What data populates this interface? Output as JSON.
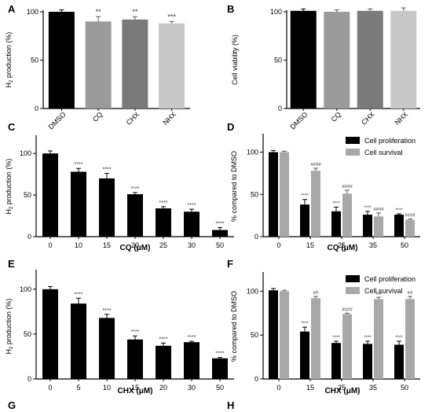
{
  "figure": {
    "panel_letters": [
      "A",
      "B",
      "C",
      "D",
      "E",
      "F",
      "G",
      "H"
    ]
  },
  "chart_data": [
    {
      "panel": "A",
      "type": "bar",
      "ylabel": "H2S production (%)",
      "ylim": [
        0,
        100
      ],
      "yticks": [
        "0",
        "50",
        "100"
      ],
      "categories": [
        "DMSO",
        "CQ",
        "CHX",
        "NHX"
      ],
      "series": [
        {
          "values": [
            100,
            90,
            92,
            88
          ],
          "errors": [
            2,
            5,
            3,
            2
          ],
          "colors": [
            "#000000",
            "#9b9b9b",
            "#7a7a7a",
            "#c8c8c8"
          ],
          "annotations": [
            "",
            "**",
            "**",
            "***"
          ]
        }
      ],
      "grid": false
    },
    {
      "panel": "B",
      "type": "bar",
      "ylabel": "Cell viability (%)",
      "ylim": [
        0,
        100
      ],
      "yticks": [
        "0",
        "50",
        "100"
      ],
      "categories": [
        "DMSO",
        "CQ",
        "CHX",
        "NHX"
      ],
      "series": [
        {
          "values": [
            101,
            100,
            101,
            101
          ],
          "errors": [
            2,
            2,
            2,
            3
          ],
          "colors": [
            "#000000",
            "#9b9b9b",
            "#7a7a7a",
            "#c8c8c8"
          ],
          "annotations": [
            "",
            "",
            "",
            ""
          ]
        }
      ],
      "grid": false
    },
    {
      "panel": "C",
      "type": "bar",
      "ylabel": "H2S production (%)",
      "xlabel": "CQ (μM)",
      "ylim": [
        0,
        120
      ],
      "yticks": [
        "0",
        "50",
        "100"
      ],
      "categories": [
        "0",
        "10",
        "15",
        "20",
        "25",
        "30",
        "50"
      ],
      "series": [
        {
          "values": [
            100,
            78,
            70,
            51,
            34,
            30,
            8
          ],
          "errors": [
            3,
            4,
            6,
            2,
            2,
            3,
            3
          ],
          "colors": [
            "#000000"
          ],
          "annotations": [
            "",
            "****",
            "****",
            "****",
            "****",
            "****",
            "****"
          ]
        }
      ],
      "grid": false
    },
    {
      "panel": "D",
      "type": "bar",
      "ylabel": "% compared to DMSO",
      "xlabel": "CQ (μM)",
      "ylim": [
        0,
        120
      ],
      "yticks": [
        "0",
        "50",
        "100"
      ],
      "categories": [
        "0",
        "15",
        "25",
        "35",
        "50"
      ],
      "series": [
        {
          "name": "Cell proliferation",
          "values": [
            100,
            38,
            30,
            26,
            26
          ],
          "errors": [
            2,
            6,
            5,
            4,
            1
          ],
          "colors": [
            "#000000"
          ],
          "annotations": [
            "",
            "****",
            "****",
            "****",
            "****"
          ]
        },
        {
          "name": "Cell survival",
          "values": [
            100,
            78,
            51,
            24,
            20
          ],
          "errors": [
            1,
            3,
            4,
            4,
            1
          ],
          "colors": [
            "#a8a8a8"
          ],
          "annotations": [
            "",
            "####",
            "####",
            "####",
            "####"
          ]
        }
      ],
      "legend": "top-right",
      "grid": false
    },
    {
      "panel": "E",
      "type": "bar",
      "ylabel": "H2S production (%)",
      "xlabel": "CHX (μM)",
      "ylim": [
        0,
        120
      ],
      "yticks": [
        "0",
        "50",
        "100"
      ],
      "categories": [
        "0",
        "5",
        "10",
        "15",
        "20",
        "30",
        "50"
      ],
      "series": [
        {
          "values": [
            100,
            84,
            68,
            44,
            37,
            41,
            23
          ],
          "errors": [
            3,
            6,
            4,
            4,
            3,
            1,
            1
          ],
          "colors": [
            "#000000"
          ],
          "annotations": [
            "",
            "****",
            "****",
            "****",
            "****",
            "****",
            "****"
          ]
        }
      ],
      "grid": false
    },
    {
      "panel": "F",
      "type": "bar",
      "ylabel": "% compared to DMSO",
      "xlabel": "CHX (μM)",
      "ylim": [
        0,
        120
      ],
      "yticks": [
        "0",
        "50",
        "100"
      ],
      "categories": [
        "0",
        "15",
        "25",
        "35",
        "50"
      ],
      "series": [
        {
          "name": "Cell proliferation",
          "values": [
            101,
            54,
            41,
            40,
            39
          ],
          "errors": [
            2,
            5,
            2,
            3,
            4
          ],
          "colors": [
            "#000000"
          ],
          "annotations": [
            "",
            "****",
            "****",
            "****",
            "****"
          ]
        },
        {
          "name": "Cell survival",
          "values": [
            100,
            92,
            74,
            91,
            91
          ],
          "errors": [
            1,
            2,
            1,
            2,
            3
          ],
          "colors": [
            "#a8a8a8"
          ],
          "annotations": [
            "",
            "##",
            "####",
            "##",
            "##"
          ]
        }
      ],
      "legend": "top-right",
      "grid": false
    }
  ]
}
